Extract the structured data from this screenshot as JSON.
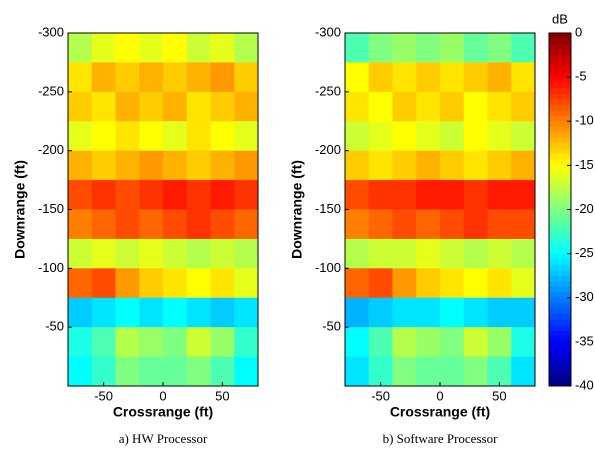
{
  "chart_data": [
    {
      "type": "heatmap",
      "caption": "a)  HW Processor",
      "xlabel": "Crossrange (ft)",
      "ylabel": "Downrange (ft)",
      "xlim": [
        -80,
        80
      ],
      "xticks": [
        -50,
        0,
        50
      ],
      "ylim": [
        -300,
        0
      ],
      "yticks": [
        -300,
        -250,
        -200,
        -150,
        -100,
        -50
      ],
      "xbins": [
        -80,
        -60,
        -40,
        -20,
        0,
        20,
        40,
        60,
        80
      ],
      "ybins": [
        -300,
        -275,
        -250,
        -225,
        -200,
        -175,
        -150,
        -125,
        -100,
        -75,
        -50,
        -25,
        0
      ],
      "colormap": "jet",
      "clim": [
        -40,
        0
      ],
      "values": [
        [
          -18,
          -16,
          -15,
          -16,
          -15,
          -17,
          -16,
          -18
        ],
        [
          -14,
          -12,
          -13,
          -12,
          -13,
          -12,
          -11,
          -13
        ],
        [
          -13,
          -14,
          -12,
          -13,
          -12,
          -14,
          -13,
          -12
        ],
        [
          -16,
          -15,
          -14,
          -15,
          -16,
          -14,
          -15,
          -16
        ],
        [
          -12,
          -13,
          -12,
          -11,
          -12,
          -13,
          -12,
          -11
        ],
        [
          -8,
          -7,
          -8,
          -7,
          -6,
          -7,
          -6,
          -7
        ],
        [
          -10,
          -9,
          -8,
          -9,
          -8,
          -7,
          -8,
          -9
        ],
        [
          -17,
          -16,
          -17,
          -16,
          -17,
          -18,
          -17,
          -18
        ],
        [
          -9,
          -8,
          -11,
          -13,
          -14,
          -15,
          -14,
          -16
        ],
        [
          -27,
          -26,
          -25,
          -26,
          -25,
          -26,
          -27,
          -26
        ],
        [
          -24,
          -22,
          -18,
          -19,
          -20,
          -17,
          -19,
          -23
        ],
        [
          -25,
          -23,
          -20,
          -21,
          -21,
          -20,
          -22,
          -25
        ]
      ]
    },
    {
      "type": "heatmap",
      "caption": "b)  Software Processor",
      "xlabel": "Crossrange (ft)",
      "ylabel": "Downrange (ft)",
      "xlim": [
        -80,
        80
      ],
      "xticks": [
        -50,
        0,
        50
      ],
      "ylim": [
        -300,
        0
      ],
      "yticks": [
        -300,
        -250,
        -200,
        -150,
        -100,
        -50
      ],
      "xbins": [
        -80,
        -60,
        -40,
        -20,
        0,
        20,
        40,
        60,
        80
      ],
      "ybins": [
        -300,
        -275,
        -250,
        -225,
        -200,
        -175,
        -150,
        -125,
        -100,
        -75,
        -50,
        -25,
        0
      ],
      "colormap": "jet",
      "clim": [
        -40,
        0
      ],
      "values": [
        [
          -22,
          -20,
          -19,
          -20,
          -19,
          -21,
          -20,
          -22
        ],
        [
          -15,
          -13,
          -14,
          -13,
          -14,
          -13,
          -12,
          -14
        ],
        [
          -14,
          -15,
          -13,
          -14,
          -13,
          -15,
          -14,
          -13
        ],
        [
          -17,
          -16,
          -15,
          -16,
          -17,
          -15,
          -16,
          -17
        ],
        [
          -13,
          -14,
          -13,
          -12,
          -13,
          -14,
          -13,
          -12
        ],
        [
          -8,
          -7,
          -7,
          -6,
          -6,
          -7,
          -6,
          -6
        ],
        [
          -10,
          -9,
          -8,
          -9,
          -8,
          -7,
          -8,
          -8
        ],
        [
          -18,
          -17,
          -17,
          -16,
          -17,
          -18,
          -17,
          -18
        ],
        [
          -9,
          -8,
          -11,
          -13,
          -14,
          -15,
          -14,
          -16
        ],
        [
          -28,
          -27,
          -26,
          -26,
          -25,
          -26,
          -27,
          -27
        ],
        [
          -25,
          -22,
          -18,
          -19,
          -20,
          -17,
          -19,
          -24
        ],
        [
          -26,
          -23,
          -20,
          -21,
          -21,
          -20,
          -22,
          -26
        ]
      ],
      "colorbar": {
        "label": "dB",
        "lim": [
          -40,
          0
        ],
        "ticks": [
          0,
          -5,
          -10,
          -15,
          -20,
          -25,
          -30,
          -35,
          -40
        ]
      }
    }
  ]
}
